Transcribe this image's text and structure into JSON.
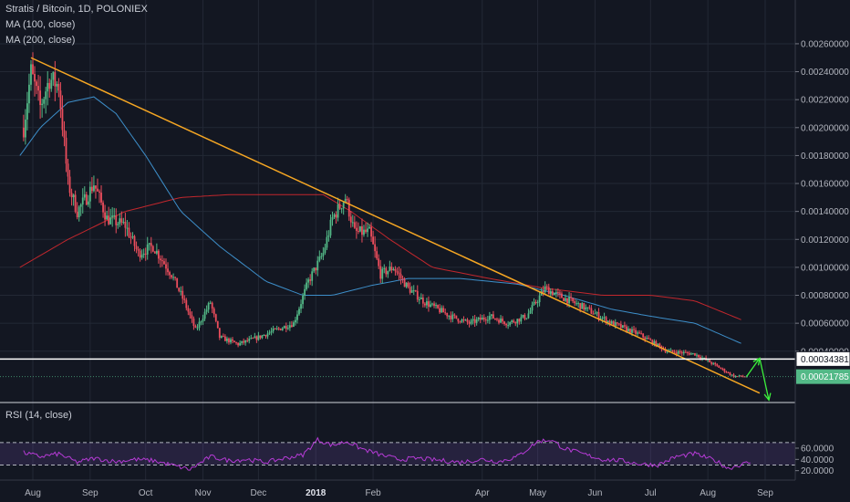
{
  "legend": {
    "main": "Stratis / Bitcoin, 1D, POLONIEX",
    "ma100": "MA (100, close)",
    "ma200": "MA (200, close)",
    "rsi": "RSI (14, close)"
  },
  "colors": {
    "background": "#131722",
    "up": "#53b987",
    "down": "#eb4d5c",
    "ma100": "#3d8ec9",
    "ma200": "#c2272d",
    "trendline": "#f5a623",
    "horizontal_line": "#ffffff",
    "arrows": "#3cf23c",
    "rsi": "#b63bd6",
    "rsi_band": "#7e57c2"
  },
  "chart_data": [
    {
      "type": "candlestick",
      "title": "Stratis / Bitcoin, 1D, POLONIEX",
      "x_tick_labels": [
        "Aug",
        "Sep",
        "Oct",
        "Nov",
        "Dec",
        "2018",
        "Feb",
        "Apr",
        "May",
        "Jun",
        "Jul",
        "Aug",
        "Sep"
      ],
      "x_tick_bold": [
        "2018"
      ],
      "y_tick_labels": [
        "0.00260000",
        "0.00240000",
        "0.00220000",
        "0.00200000",
        "0.00180000",
        "0.00160000",
        "0.00140000",
        "0.00120000",
        "0.00100000",
        "0.00080000",
        "0.00060000",
        "0.00040000"
      ],
      "ylim": [
        0.0,
        0.0027
      ],
      "price_path": [
        [
          "2017-07-27",
          0.002
        ],
        [
          "2017-07-31",
          0.0024
        ],
        [
          "2017-08-05",
          0.00215
        ],
        [
          "2017-08-10",
          0.00235
        ],
        [
          "2017-08-15",
          0.0023
        ],
        [
          "2017-08-20",
          0.0016
        ],
        [
          "2017-08-25",
          0.0014
        ],
        [
          "2017-08-30",
          0.0015
        ],
        [
          "2017-09-03",
          0.0016
        ],
        [
          "2017-09-10",
          0.00135
        ],
        [
          "2017-09-20",
          0.0013
        ],
        [
          "2017-09-27",
          0.0011
        ],
        [
          "2017-10-05",
          0.00115
        ],
        [
          "2017-10-15",
          0.00095
        ],
        [
          "2017-10-22",
          0.00075
        ],
        [
          "2017-10-28",
          0.00055
        ],
        [
          "2017-11-05",
          0.00075
        ],
        [
          "2017-11-10",
          0.0005
        ],
        [
          "2017-11-20",
          0.00045
        ],
        [
          "2017-12-01",
          0.0005
        ],
        [
          "2017-12-10",
          0.00055
        ],
        [
          "2017-12-20",
          0.0006
        ],
        [
          "2017-12-28",
          0.0009
        ],
        [
          "2018-01-05",
          0.0011
        ],
        [
          "2018-01-10",
          0.00135
        ],
        [
          "2018-01-17",
          0.0015
        ],
        [
          "2018-01-22",
          0.00125
        ],
        [
          "2018-01-30",
          0.00125
        ],
        [
          "2018-02-05",
          0.00095
        ],
        [
          "2018-02-12",
          0.001
        ],
        [
          "2018-02-20",
          0.00085
        ],
        [
          "2018-03-01",
          0.00075
        ],
        [
          "2018-03-15",
          0.00065
        ],
        [
          "2018-03-25",
          0.0006
        ],
        [
          "2018-04-05",
          0.00065
        ],
        [
          "2018-04-15",
          0.0006
        ],
        [
          "2018-04-25",
          0.00065
        ],
        [
          "2018-05-05",
          0.00085
        ],
        [
          "2018-05-12",
          0.0008
        ],
        [
          "2018-05-25",
          0.00072
        ],
        [
          "2018-06-10",
          0.0006
        ],
        [
          "2018-06-25",
          0.00052
        ],
        [
          "2018-07-10",
          0.0004
        ],
        [
          "2018-07-25",
          0.00038
        ],
        [
          "2018-08-05",
          0.0003
        ],
        [
          "2018-08-15",
          0.00022
        ],
        [
          "2018-08-22",
          0.00022
        ]
      ],
      "ma100": [
        [
          "2017-07-25",
          0.0018
        ],
        [
          "2017-08-05",
          0.002
        ],
        [
          "2017-08-20",
          0.00218
        ],
        [
          "2017-09-03",
          0.00222
        ],
        [
          "2017-09-15",
          0.0021
        ],
        [
          "2017-10-01",
          0.0018
        ],
        [
          "2017-10-20",
          0.0014
        ],
        [
          "2017-11-10",
          0.00115
        ],
        [
          "2017-12-05",
          0.0009
        ],
        [
          "2017-12-25",
          0.0008
        ],
        [
          "2018-01-10",
          0.0008
        ],
        [
          "2018-01-31",
          0.00087
        ],
        [
          "2018-02-20",
          0.00092
        ],
        [
          "2018-03-20",
          0.00092
        ],
        [
          "2018-04-20",
          0.00088
        ],
        [
          "2018-05-15",
          0.0008
        ],
        [
          "2018-06-10",
          0.0007
        ],
        [
          "2018-07-01",
          0.00065
        ],
        [
          "2018-07-25",
          0.0006
        ],
        [
          "2018-08-20",
          0.00045
        ]
      ],
      "ma200": [
        [
          "2017-07-25",
          0.001
        ],
        [
          "2017-08-20",
          0.0012
        ],
        [
          "2017-09-20",
          0.0014
        ],
        [
          "2017-10-20",
          0.0015
        ],
        [
          "2017-11-15",
          0.00152
        ],
        [
          "2017-12-15",
          0.00152
        ],
        [
          "2018-01-05",
          0.00152
        ],
        [
          "2018-01-20",
          0.0014
        ],
        [
          "2018-02-10",
          0.0012
        ],
        [
          "2018-03-05",
          0.001
        ],
        [
          "2018-04-05",
          0.00092
        ],
        [
          "2018-05-05",
          0.00085
        ],
        [
          "2018-06-05",
          0.0008
        ],
        [
          "2018-07-01",
          0.0008
        ],
        [
          "2018-07-25",
          0.00076
        ],
        [
          "2018-08-20",
          0.00062
        ]
      ],
      "trendline": [
        [
          "2017-07-31",
          0.0025
        ],
        [
          "2018-08-29",
          0.0001
        ]
      ],
      "horizontal_level": 0.00034381,
      "price_labels": [
        {
          "text": "0.00034381",
          "value": 0.00034381,
          "style": "white"
        },
        {
          "text": "0.00021785",
          "value": 0.00021785,
          "style": "green"
        }
      ],
      "projection_arrows": [
        {
          "from": [
            "2018-08-22",
            0.00022
          ],
          "to": [
            "2018-08-29",
            0.00035
          ]
        },
        {
          "from": [
            "2018-08-29",
            0.00035
          ],
          "to": [
            "2018-09-03",
            5e-05
          ]
        }
      ]
    },
    {
      "type": "line",
      "title": "RSI (14, close)",
      "y_tick_labels": [
        "60.0000",
        "40.0000",
        "20.0000"
      ],
      "ylim": [
        15,
        80
      ],
      "band": [
        30,
        70
      ],
      "rsi_path": [
        [
          "2017-07-27",
          52
        ],
        [
          "2017-08-05",
          45
        ],
        [
          "2017-08-15",
          50
        ],
        [
          "2017-08-25",
          35
        ],
        [
          "2017-09-03",
          42
        ],
        [
          "2017-09-15",
          36
        ],
        [
          "2017-09-25",
          40
        ],
        [
          "2017-10-05",
          38
        ],
        [
          "2017-10-15",
          30
        ],
        [
          "2017-10-25",
          22
        ],
        [
          "2017-11-05",
          45
        ],
        [
          "2017-11-15",
          38
        ],
        [
          "2017-11-25",
          40
        ],
        [
          "2017-12-05",
          35
        ],
        [
          "2017-12-15",
          42
        ],
        [
          "2017-12-25",
          48
        ],
        [
          "2018-01-02",
          75
        ],
        [
          "2018-01-10",
          65
        ],
        [
          "2018-01-18",
          72
        ],
        [
          "2018-01-25",
          60
        ],
        [
          "2018-02-05",
          48
        ],
        [
          "2018-02-15",
          40
        ],
        [
          "2018-02-25",
          42
        ],
        [
          "2018-03-10",
          38
        ],
        [
          "2018-03-20",
          35
        ],
        [
          "2018-04-01",
          40
        ],
        [
          "2018-04-10",
          36
        ],
        [
          "2018-04-20",
          45
        ],
        [
          "2018-05-01",
          72
        ],
        [
          "2018-05-08",
          75
        ],
        [
          "2018-05-15",
          60
        ],
        [
          "2018-05-25",
          50
        ],
        [
          "2018-06-05",
          40
        ],
        [
          "2018-06-15",
          38
        ],
        [
          "2018-06-25",
          32
        ],
        [
          "2018-07-05",
          30
        ],
        [
          "2018-07-15",
          45
        ],
        [
          "2018-07-25",
          50
        ],
        [
          "2018-08-05",
          38
        ],
        [
          "2018-08-12",
          24
        ],
        [
          "2018-08-18",
          30
        ],
        [
          "2018-08-24",
          35
        ]
      ]
    }
  ]
}
